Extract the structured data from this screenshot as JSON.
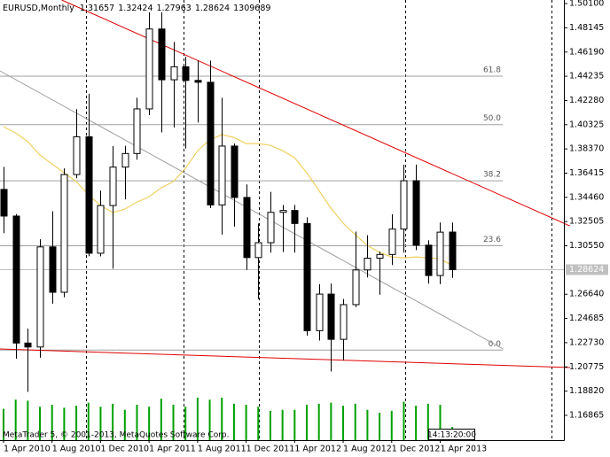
{
  "symbol": "EURUSD,Monthly",
  "footer": "MetaTrader 5, © 2001-2013, MetaQuotes Software Corp.",
  "countdown": "14:13:20:00",
  "chart_data": {
    "type": "candlestick",
    "categories": [
      "1 Apr 2010",
      null,
      null,
      null,
      "1 Aug 2010",
      null,
      null,
      null,
      "1 Dec 2010",
      null,
      null,
      null,
      "1 Apr 2011",
      null,
      null,
      null,
      "1 Aug 2011",
      null,
      null,
      null,
      "1 Dec 2011",
      null,
      null,
      null,
      "1 Apr 2012",
      null,
      null,
      null,
      "1 Aug 2012",
      null,
      null,
      null,
      "1 Dec 2012",
      null,
      null,
      null,
      "1 Apr 2013",
      null
    ],
    "open": [
      1.351,
      1.3295,
      1.227,
      1.2238,
      1.3046,
      1.268,
      1.363,
      1.3935,
      1.2995,
      1.338,
      1.369,
      1.38,
      1.416,
      1.4805,
      1.4395,
      1.45,
      1.439,
      1.4375,
      1.3385,
      1.386,
      1.3445,
      1.296,
      1.308,
      1.3325,
      1.334,
      1.3235,
      1.237,
      1.2665,
      1.23,
      1.258,
      1.286,
      1.2955,
      1.2985,
      1.319,
      1.358,
      1.306,
      1.2815,
      1.31657
    ],
    "high": [
      1.3692,
      1.3311,
      1.2387,
      1.3108,
      1.3334,
      1.368,
      1.4158,
      1.4282,
      1.35,
      1.386,
      1.3862,
      1.425,
      1.494,
      1.494,
      1.47,
      1.458,
      1.455,
      1.455,
      1.425,
      1.388,
      1.355,
      1.3235,
      1.349,
      1.3385,
      1.3385,
      1.3285,
      1.2745,
      1.275,
      1.2625,
      1.317,
      1.314,
      1.301,
      1.331,
      1.371,
      1.371,
      1.31,
      1.3243,
      1.32424
    ],
    "low": [
      1.3157,
      1.2143,
      1.1876,
      1.2152,
      1.2588,
      1.264,
      1.36,
      1.297,
      1.2969,
      1.287,
      1.343,
      1.375,
      1.411,
      1.397,
      1.401,
      1.384,
      1.405,
      1.336,
      1.3145,
      1.321,
      1.286,
      1.2625,
      1.3,
      1.3005,
      1.3,
      1.233,
      1.229,
      1.204,
      1.213,
      1.256,
      1.28,
      1.266,
      1.29,
      1.3,
      1.302,
      1.275,
      1.2745,
      1.27963
    ],
    "close": [
      1.3295,
      1.227,
      1.2238,
      1.3046,
      1.268,
      1.363,
      1.3935,
      1.2995,
      1.338,
      1.369,
      1.38,
      1.416,
      1.4805,
      1.4395,
      1.45,
      1.439,
      1.4375,
      1.3385,
      1.386,
      1.3445,
      1.296,
      1.308,
      1.3325,
      1.334,
      1.3235,
      1.237,
      1.2665,
      1.23,
      1.258,
      1.286,
      1.2955,
      1.2985,
      1.319,
      1.358,
      1.306,
      1.2815,
      1.3165,
      1.28624
    ],
    "volume": [
      3100000,
      4000000,
      3900000,
      3300000,
      3500000,
      3200000,
      3400000,
      3700000,
      3300000,
      3600000,
      3000000,
      3500000,
      3300000,
      4100000,
      3500000,
      3300000,
      4200000,
      4000000,
      4200000,
      3600000,
      3500000,
      3300000,
      2900000,
      3000000,
      3000000,
      3500000,
      3600000,
      3700000,
      3400000,
      3600000,
      3000000,
      2700000,
      2900000,
      3800000,
      3400000,
      3600000,
      3500000,
      1309689
    ],
    "bull_color": "#ffffff",
    "bear_color": "#000000",
    "volume_color": "#00a000",
    "ylim": [
      1.1486,
      1.5039
    ],
    "yticks": [
      {
        "value": 1.501,
        "label": "1.50100"
      },
      1.48145,
      {
        "value": 1.4619,
        "label": "1.46190"
      },
      1.44235,
      {
        "value": 1.4228,
        "label": "1.42280"
      },
      1.40325,
      {
        "value": 1.3837,
        "label": "1.38370"
      },
      1.36415,
      {
        "value": 1.3446,
        "label": "1.34460"
      },
      1.32505,
      {
        "value": 1.3055,
        "label": "1.30550"
      },
      {
        "value": 1.2664,
        "label": "1.26640"
      },
      1.24685,
      {
        "value": 1.2273,
        "label": "1.22730"
      },
      1.20775,
      {
        "value": 1.1882,
        "label": "1.18820"
      },
      1.16865
    ],
    "last_price": 1.28624,
    "moving_average": {
      "color": "#f0d060",
      "values": [
        1.4016,
        1.3966,
        1.3895,
        1.3787,
        1.3716,
        1.3644,
        1.3573,
        1.3466,
        1.338,
        1.3323,
        1.3351,
        1.3408,
        1.3451,
        1.3523,
        1.3573,
        1.368,
        1.3823,
        1.3909,
        1.3952,
        1.393,
        1.388,
        1.388,
        1.3866,
        1.3823,
        1.3766,
        1.3644,
        1.3501,
        1.3358,
        1.3237,
        1.3144,
        1.3058,
        1.3001,
        1.2965,
        1.2958,
        1.2965,
        1.2958,
        1.2951,
        1.2894
      ]
    },
    "fibonacci": {
      "color": "#a0a0a0",
      "levels": [
        61.8,
        {
          "value": 50,
          "label": "50.0"
        },
        38.2,
        23.6,
        {
          "value": 0,
          "label": "0.0"
        }
      ],
      "level_prices": [
        1.4424,
        1.4033,
        1.358,
        1.3055,
        1.2213
      ]
    },
    "trendlines": [
      {
        "color": "#e00000",
        "x": [
          4.8,
          46.7
        ],
        "y": [
          1.5039,
          1.3215
        ]
      },
      {
        "color": "#e00000",
        "x": [
          -0.3,
          46.7
        ],
        "y": [
          1.2222,
          1.2072
        ]
      },
      {
        "color": "#a0a0a0",
        "x": [
          -0.3,
          41.2
        ],
        "y": [
          1.4467,
          1.2222
        ]
      }
    ]
  }
}
